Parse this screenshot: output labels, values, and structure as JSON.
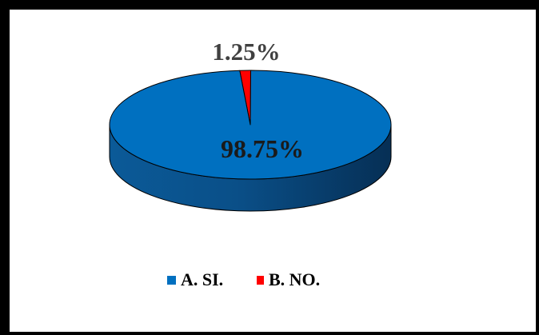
{
  "chart_data": {
    "type": "pie",
    "style": "3d",
    "slices": [
      {
        "label": "A. SI.",
        "value": 98.75,
        "value_label": "98.75%",
        "color": "#0070C0"
      },
      {
        "label": "B. NO.",
        "value": 1.25,
        "value_label": "1.25%",
        "color": "#FF0000"
      }
    ],
    "legend_placement": "bottom"
  }
}
